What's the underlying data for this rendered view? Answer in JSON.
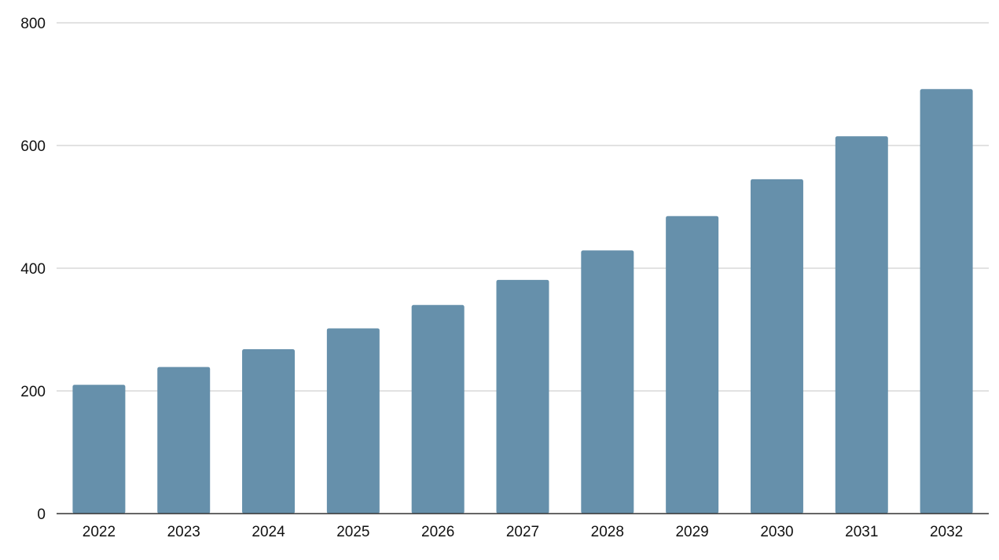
{
  "chart_data": {
    "type": "bar",
    "categories": [
      "2022",
      "2023",
      "2024",
      "2025",
      "2026",
      "2027",
      "2028",
      "2029",
      "2030",
      "2031",
      "2032"
    ],
    "values": [
      210,
      239,
      268,
      302,
      340,
      381,
      429,
      485,
      545,
      615,
      692
    ],
    "ylim": [
      0,
      800
    ],
    "yticks": [
      0,
      200,
      400,
      600,
      800
    ],
    "grid": true,
    "bar_color": "#6690ab",
    "grid_color": "#d0d0d0",
    "axis_color": "#333333"
  }
}
